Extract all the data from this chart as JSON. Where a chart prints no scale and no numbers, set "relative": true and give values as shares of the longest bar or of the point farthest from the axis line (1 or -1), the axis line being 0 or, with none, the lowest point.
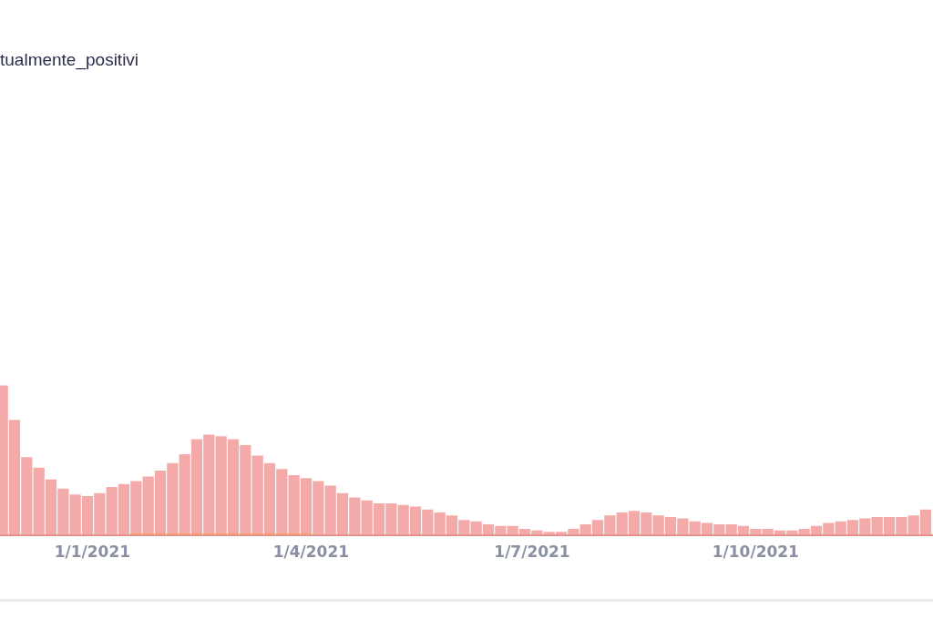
{
  "chart_data": {
    "type": "bar",
    "title": "tualmente_positivi",
    "relative": true,
    "xlim": [
      "2020-11-24",
      "2021-12-13"
    ],
    "xticks": [
      {
        "value": "2021-01-01",
        "label": "1/1/2021"
      },
      {
        "value": "2021-04-01",
        "label": "1/4/2021"
      },
      {
        "value": "2021-07-01",
        "label": "1/7/2021"
      },
      {
        "value": "2021-10-01",
        "label": "1/10/2021"
      }
    ],
    "x": [
      "2020-11-25",
      "2020-11-30",
      "2020-12-05",
      "2020-12-10",
      "2020-12-15",
      "2020-12-20",
      "2020-12-25",
      "2020-12-30",
      "2021-01-04",
      "2021-01-09",
      "2021-01-14",
      "2021-01-19",
      "2021-01-24",
      "2021-01-29",
      "2021-02-03",
      "2021-02-08",
      "2021-02-13",
      "2021-02-18",
      "2021-02-23",
      "2021-02-28",
      "2021-03-05",
      "2021-03-10",
      "2021-03-15",
      "2021-03-20",
      "2021-03-25",
      "2021-03-30",
      "2021-04-04",
      "2021-04-09",
      "2021-04-14",
      "2021-04-19",
      "2021-04-24",
      "2021-04-29",
      "2021-05-04",
      "2021-05-09",
      "2021-05-14",
      "2021-05-19",
      "2021-05-24",
      "2021-05-29",
      "2021-06-03",
      "2021-06-08",
      "2021-06-13",
      "2021-06-18",
      "2021-06-23",
      "2021-06-28",
      "2021-07-03",
      "2021-07-08",
      "2021-07-13",
      "2021-07-18",
      "2021-07-23",
      "2021-07-28",
      "2021-08-02",
      "2021-08-07",
      "2021-08-12",
      "2021-08-17",
      "2021-08-22",
      "2021-08-27",
      "2021-09-01",
      "2021-09-06",
      "2021-09-11",
      "2021-09-16",
      "2021-09-21",
      "2021-09-26",
      "2021-10-01",
      "2021-10-06",
      "2021-10-11",
      "2021-10-16",
      "2021-10-21",
      "2021-10-26",
      "2021-10-31",
      "2021-11-05",
      "2021-11-10",
      "2021-11-15",
      "2021-11-20",
      "2021-11-25",
      "2021-11-30",
      "2021-12-05",
      "2021-12-10"
    ],
    "series": [
      {
        "color": "#f4aaa9",
        "values": [
          1,
          0.77,
          0.52,
          0.45,
          0.37,
          0.31,
          0.27,
          0.26,
          0.28,
          0.32,
          0.34,
          0.36,
          0.39,
          0.43,
          0.48,
          0.54,
          0.64,
          0.67,
          0.66,
          0.64,
          0.6,
          0.53,
          0.48,
          0.44,
          0.4,
          0.38,
          0.36,
          0.33,
          0.28,
          0.25,
          0.23,
          0.21,
          0.21,
          0.2,
          0.19,
          0.17,
          0.15,
          0.13,
          0.1,
          0.09,
          0.07,
          0.06,
          0.06,
          0.04,
          0.03,
          0.02,
          0.02,
          0.04,
          0.07,
          0.1,
          0.13,
          0.15,
          0.16,
          0.15,
          0.13,
          0.12,
          0.11,
          0.09,
          0.08,
          0.07,
          0.07,
          0.06,
          0.04,
          0.04,
          0.03,
          0.03,
          0.04,
          0.06,
          0.08,
          0.09,
          0.1,
          0.11,
          0.12,
          0.12,
          0.12,
          0.13,
          0.17
        ]
      },
      {
        "color": "#f4a261",
        "values": [
          null,
          null,
          null,
          null,
          null,
          null,
          null,
          null,
          null,
          null,
          null,
          0.01,
          0.01,
          0.01,
          0.01,
          0.01,
          0.01,
          0.01,
          0.01,
          0.01,
          0.01,
          0.01,
          0.01,
          0.01,
          0.01,
          0.01,
          null,
          null,
          null,
          null,
          null,
          null,
          null,
          null,
          null,
          null,
          null,
          null,
          null,
          null,
          null,
          null,
          null,
          null,
          null,
          null,
          null,
          null,
          null,
          null,
          null,
          null,
          null,
          null,
          null,
          null,
          null,
          null,
          null,
          null,
          null,
          null,
          null,
          null,
          null,
          null,
          null,
          null,
          null,
          null,
          null,
          null,
          null,
          null,
          null,
          null,
          null
        ]
      }
    ]
  }
}
